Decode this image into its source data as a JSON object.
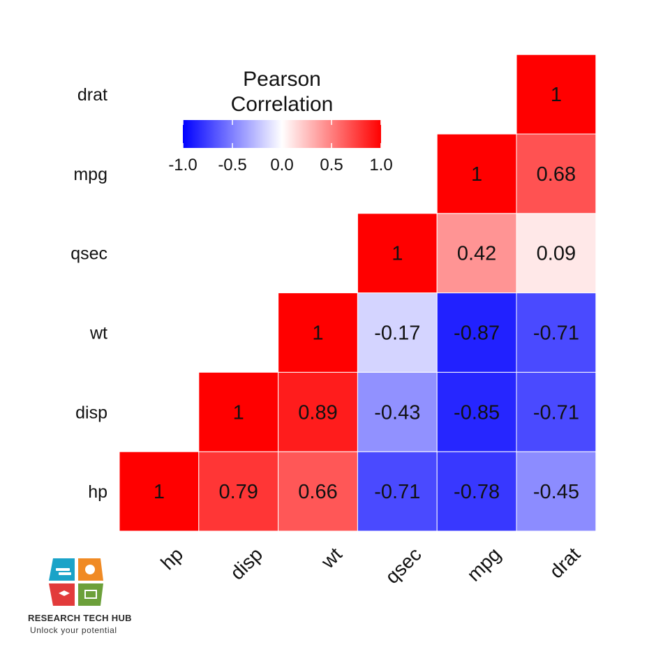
{
  "chart_data": {
    "type": "heatmap",
    "variables": [
      "hp",
      "disp",
      "wt",
      "qsec",
      "mpg",
      "drat"
    ],
    "legend": {
      "title_lines": [
        "Pearson",
        "Correlation"
      ],
      "ticks": [
        "-1.0",
        "-0.5",
        "0.0",
        "0.5",
        "1.0"
      ],
      "range": [
        -1,
        1
      ],
      "colors": {
        "low": "#0000ff",
        "mid": "#ffffff",
        "high": "#ff0000"
      },
      "placement": "top-left"
    },
    "cells": [
      {
        "row": "hp",
        "col": "hp",
        "value": 1,
        "label": "1"
      },
      {
        "row": "hp",
        "col": "disp",
        "value": 0.79,
        "label": "0.79"
      },
      {
        "row": "hp",
        "col": "wt",
        "value": 0.66,
        "label": "0.66"
      },
      {
        "row": "hp",
        "col": "qsec",
        "value": -0.71,
        "label": "-0.71"
      },
      {
        "row": "hp",
        "col": "mpg",
        "value": -0.78,
        "label": "-0.78"
      },
      {
        "row": "hp",
        "col": "drat",
        "value": -0.45,
        "label": "-0.45"
      },
      {
        "row": "disp",
        "col": "disp",
        "value": 1,
        "label": "1"
      },
      {
        "row": "disp",
        "col": "wt",
        "value": 0.89,
        "label": "0.89"
      },
      {
        "row": "disp",
        "col": "qsec",
        "value": -0.43,
        "label": "-0.43"
      },
      {
        "row": "disp",
        "col": "mpg",
        "value": -0.85,
        "label": "-0.85"
      },
      {
        "row": "disp",
        "col": "drat",
        "value": -0.71,
        "label": "-0.71"
      },
      {
        "row": "wt",
        "col": "wt",
        "value": 1,
        "label": "1"
      },
      {
        "row": "wt",
        "col": "qsec",
        "value": -0.17,
        "label": "-0.17"
      },
      {
        "row": "wt",
        "col": "mpg",
        "value": -0.87,
        "label": "-0.87"
      },
      {
        "row": "wt",
        "col": "drat",
        "value": -0.71,
        "label": "-0.71"
      },
      {
        "row": "qsec",
        "col": "qsec",
        "value": 1,
        "label": "1"
      },
      {
        "row": "qsec",
        "col": "mpg",
        "value": 0.42,
        "label": "0.42"
      },
      {
        "row": "qsec",
        "col": "drat",
        "value": 0.09,
        "label": "0.09"
      },
      {
        "row": "mpg",
        "col": "mpg",
        "value": 1,
        "label": "1"
      },
      {
        "row": "mpg",
        "col": "drat",
        "value": 0.68,
        "label": "0.68"
      },
      {
        "row": "drat",
        "col": "drat",
        "value": 1,
        "label": "1"
      }
    ]
  },
  "logo": {
    "name": "RESEARCH TECH HUB",
    "tagline": "Unlock your potential"
  }
}
